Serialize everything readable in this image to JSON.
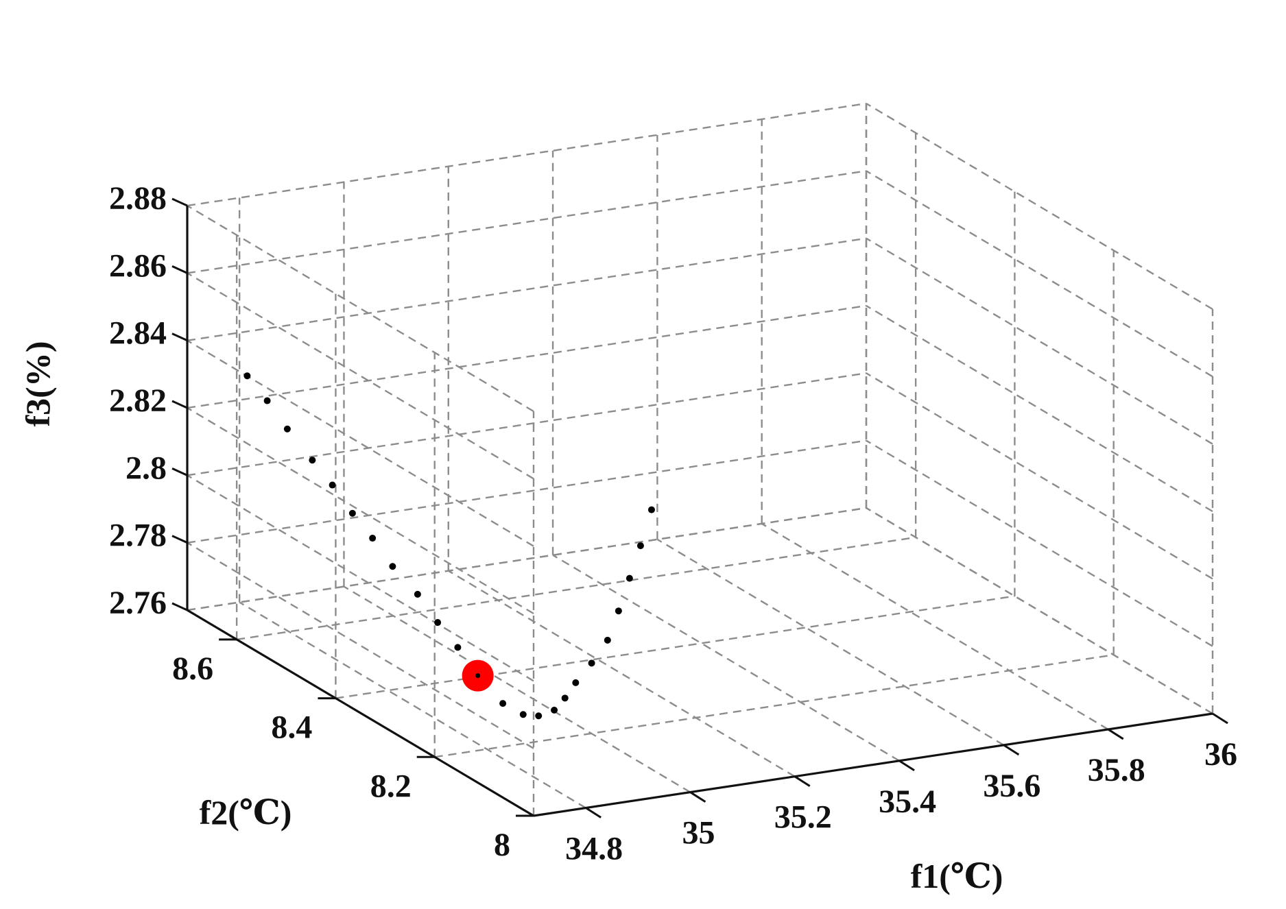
{
  "chart_data": {
    "type": "scatter",
    "dimensions": 3,
    "title": "",
    "xlabel": "f1(℃)",
    "ylabel": "f2(℃)",
    "zlabel": "f3(%)",
    "xlim": [
      34.7,
      36
    ],
    "ylim": [
      8,
      8.7
    ],
    "zlim": [
      2.76,
      2.88
    ],
    "xticks": [
      "34.8",
      "35",
      "35.2",
      "35.4",
      "35.6",
      "35.8",
      "36"
    ],
    "yticks": [
      "8",
      "8.2",
      "8.4",
      "8.6"
    ],
    "zticks": [
      "2.76",
      "2.78",
      "2.8",
      "2.82",
      "2.84",
      "2.86",
      "2.88"
    ],
    "grid": true,
    "series": [
      {
        "marker": "point",
        "color": "#000000",
        "points": [
          [
            34.9,
            8.79,
            2.817
          ],
          [
            34.91,
            8.76,
            2.812
          ],
          [
            34.92,
            8.73,
            2.806
          ],
          [
            34.93,
            8.69,
            2.8
          ],
          [
            34.94,
            8.66,
            2.795
          ],
          [
            34.95,
            8.63,
            2.789
          ],
          [
            34.96,
            8.6,
            2.784
          ],
          [
            34.97,
            8.57,
            2.778
          ],
          [
            34.98,
            8.53,
            2.773
          ],
          [
            34.99,
            8.5,
            2.767
          ],
          [
            35.0,
            8.47,
            2.762
          ],
          [
            35.01,
            8.44,
            2.756
          ],
          [
            35.02,
            8.4,
            2.751
          ],
          [
            35.04,
            8.38,
            2.749
          ],
          [
            35.06,
            8.37,
            2.749
          ],
          [
            35.09,
            8.37,
            2.75
          ],
          [
            35.12,
            8.38,
            2.752
          ],
          [
            35.15,
            8.39,
            2.755
          ],
          [
            35.19,
            8.4,
            2.759
          ],
          [
            35.23,
            8.41,
            2.764
          ],
          [
            35.27,
            8.43,
            2.77
          ],
          [
            35.31,
            8.45,
            2.777
          ],
          [
            35.35,
            8.47,
            2.784
          ],
          [
            35.39,
            8.49,
            2.792
          ]
        ]
      },
      {
        "marker": "circle",
        "color": "#ff0000",
        "points": [
          [
            35.01,
            8.44,
            2.756
          ]
        ]
      }
    ]
  }
}
